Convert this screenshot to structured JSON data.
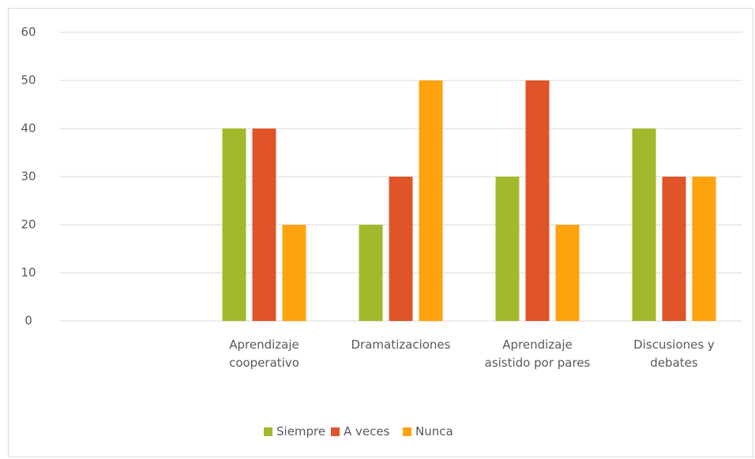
{
  "chart_data": {
    "type": "bar",
    "categories": [
      null,
      "Aprendizaje cooperativo",
      "Dramatizaciones",
      "Aprendizaje asistido por pares",
      "Discusiones y debates"
    ],
    "series": [
      {
        "name": "Siempre",
        "color": "#a2b92b",
        "values": [
          null,
          40,
          20,
          30,
          40
        ]
      },
      {
        "name": "A veces",
        "color": "#e0542a",
        "values": [
          null,
          40,
          30,
          50,
          30
        ]
      },
      {
        "name": "Nunca",
        "color": "#fca30d",
        "values": [
          null,
          20,
          50,
          20,
          30
        ]
      }
    ],
    "ylim": [
      0,
      60
    ],
    "yticks": [
      0,
      10,
      20,
      30,
      40,
      50,
      60
    ],
    "grid": true,
    "legend": "bottom"
  }
}
